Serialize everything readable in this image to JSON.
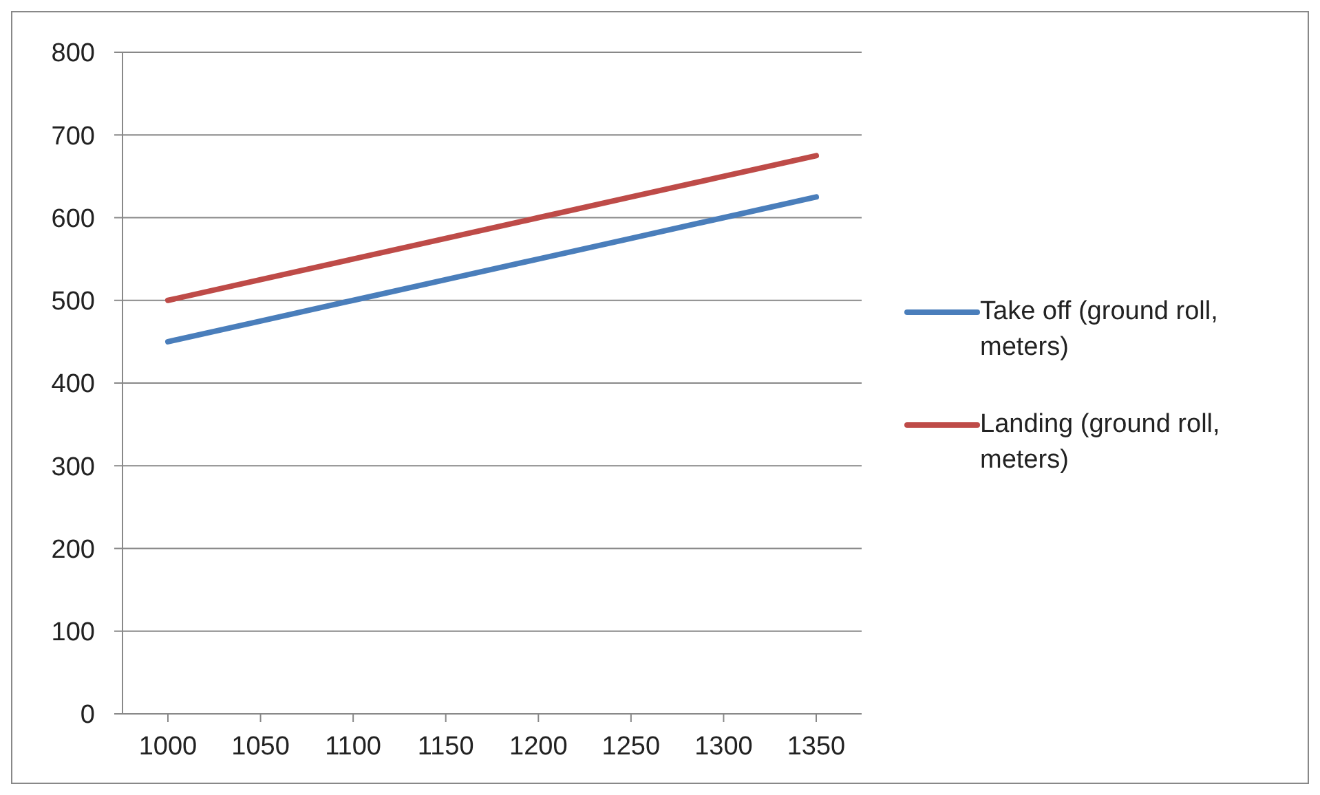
{
  "chart_data": {
    "type": "line",
    "categories": [
      "1000",
      "1050",
      "1100",
      "1150",
      "1200",
      "1250",
      "1300",
      "1350"
    ],
    "series": [
      {
        "name": "Take off (ground roll, meters)",
        "color": "#4a7ebb",
        "values": [
          450,
          475,
          500,
          525,
          550,
          575,
          600,
          625
        ]
      },
      {
        "name": "Landing (ground roll, meters)",
        "color": "#be4b48",
        "values": [
          500,
          525,
          550,
          575,
          600,
          625,
          650,
          675
        ]
      }
    ],
    "ylim": [
      0,
      800
    ],
    "yticks": [
      0,
      100,
      200,
      300,
      400,
      500,
      600,
      700,
      800
    ],
    "grid": "y",
    "legend": "right",
    "marker": "none",
    "line_style": "solid"
  }
}
